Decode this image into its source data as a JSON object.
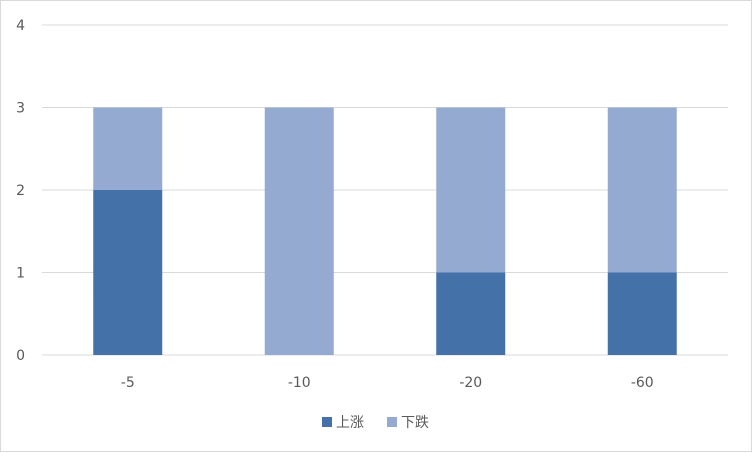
{
  "chart_data": {
    "type": "bar",
    "stacked": true,
    "categories": [
      "-5",
      "-10",
      "-20",
      "-60"
    ],
    "series": [
      {
        "name": "上涨",
        "values": [
          2,
          0,
          1,
          1
        ],
        "color": "#4472a8"
      },
      {
        "name": "下跌",
        "values": [
          1,
          3,
          2,
          2
        ],
        "color": "#95aad1"
      }
    ],
    "yticks": [
      "0",
      "1",
      "2",
      "3",
      "4"
    ],
    "ylim": [
      0,
      4
    ],
    "grid": true,
    "legend_position": "bottom-center"
  }
}
